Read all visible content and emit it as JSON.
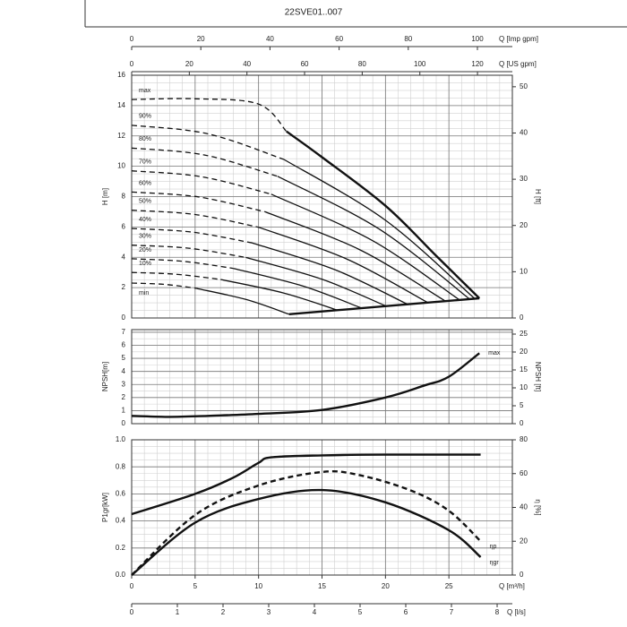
{
  "chart_data": [
    {
      "type": "line",
      "title": "22SVE01..007",
      "xlim": [
        0,
        30
      ],
      "xminor": 1,
      "yminor": 0.5,
      "ylabel": "H [m]",
      "ylim": [
        0,
        16
      ],
      "yticks": [
        0,
        2,
        4,
        6,
        8,
        10,
        12,
        14,
        16
      ],
      "y2label": "H [ft]",
      "y2lim": [
        0,
        52.49
      ],
      "y2ticks": [
        0,
        10,
        20,
        30,
        40,
        50
      ],
      "top_axes": [
        {
          "label": "Q [Imp gpm]",
          "lim": [
            0,
            110.1
          ],
          "ticks": [
            0,
            20,
            40,
            60,
            80,
            100
          ]
        },
        {
          "label": "Q [US gpm]",
          "lim": [
            0,
            132.1
          ],
          "ticks": [
            0,
            20,
            40,
            60,
            80,
            100,
            120
          ]
        }
      ],
      "series": [
        {
          "name": "max",
          "style": "dashed",
          "color": "#111",
          "x": [
            0,
            5,
            10,
            12.2
          ],
          "values": [
            14.4,
            14.45,
            14.1,
            12.3
          ]
        },
        {
          "style": "solid",
          "bold": true,
          "color": "#111",
          "x": [
            12.2,
            15,
            20,
            24,
            27.4
          ],
          "values": [
            12.3,
            10.6,
            7.4,
            4.1,
            1.3
          ]
        },
        {
          "name": "90%",
          "style": "dashed",
          "color": "#111",
          "x": [
            0,
            6,
            12
          ],
          "values": [
            12.7,
            12.14,
            10.45
          ]
        },
        {
          "style": "solid",
          "color": "#111",
          "x": [
            12,
            20,
            27
          ],
          "values": [
            10.45,
            6.44,
            1.3
          ]
        },
        {
          "name": "80%",
          "style": "dashed",
          "color": "#111",
          "x": [
            0,
            5.75,
            11.5
          ],
          "values": [
            11.2,
            10.74,
            9.34
          ]
        },
        {
          "style": "solid",
          "color": "#111",
          "x": [
            11.5,
            19.5,
            26.6
          ],
          "values": [
            9.34,
            5.86,
            1.27
          ]
        },
        {
          "name": "70%",
          "style": "dashed",
          "color": "#111",
          "x": [
            0,
            5.5,
            11
          ],
          "values": [
            9.7,
            9.31,
            8.16
          ]
        },
        {
          "style": "solid",
          "color": "#111",
          "x": [
            11,
            19,
            25.8
          ],
          "values": [
            8.16,
            5.09,
            1.21
          ]
        },
        {
          "name": "60%",
          "style": "dashed",
          "color": "#111",
          "x": [
            0,
            5.25,
            10.5
          ],
          "values": [
            8.3,
            7.98,
            7.0
          ]
        },
        {
          "style": "solid",
          "color": "#111",
          "x": [
            10.5,
            18,
            24.7
          ],
          "values": [
            7.0,
            4.49,
            1.13
          ]
        },
        {
          "name": "50%",
          "style": "dashed",
          "color": "#111",
          "x": [
            0,
            5,
            10
          ],
          "values": [
            7.1,
            6.82,
            5.98
          ]
        },
        {
          "style": "solid",
          "color": "#111",
          "x": [
            10,
            17,
            23.3
          ],
          "values": [
            5.98,
            3.87,
            1.03
          ]
        },
        {
          "name": "40%",
          "style": "dashed",
          "color": "#111",
          "x": [
            0,
            4.75,
            9.5
          ],
          "values": [
            5.9,
            5.66,
            4.95
          ]
        },
        {
          "style": "solid",
          "color": "#111",
          "x": [
            9.5,
            16,
            21.7
          ],
          "values": [
            4.95,
            3.19,
            0.92
          ]
        },
        {
          "name": "30%",
          "style": "dashed",
          "color": "#111",
          "x": [
            0,
            4.5,
            9
          ],
          "values": [
            4.8,
            4.6,
            3.99
          ]
        },
        {
          "style": "solid",
          "color": "#111",
          "x": [
            9,
            15,
            20
          ],
          "values": [
            3.99,
            2.55,
            0.8
          ]
        },
        {
          "name": "20%",
          "style": "dashed",
          "color": "#111",
          "x": [
            0,
            4,
            8
          ],
          "values": [
            3.9,
            3.74,
            3.27
          ]
        },
        {
          "style": "solid",
          "color": "#111",
          "x": [
            8,
            13.5,
            18.1
          ],
          "values": [
            3.27,
            2.1,
            0.66
          ]
        },
        {
          "name": "10%",
          "style": "dashed",
          "color": "#111",
          "x": [
            0,
            3.5,
            7
          ],
          "values": [
            3.0,
            2.88,
            2.54
          ]
        },
        {
          "style": "solid",
          "color": "#111",
          "x": [
            7,
            12,
            16.2
          ],
          "values": [
            2.54,
            1.64,
            0.52
          ]
        },
        {
          "name": "min",
          "style": "dashed",
          "color": "#111",
          "x": [
            0,
            2.5,
            5
          ],
          "values": [
            2.3,
            2.22,
            1.97
          ]
        },
        {
          "style": "solid",
          "color": "#111",
          "x": [
            5,
            9,
            12.4
          ],
          "values": [
            1.97,
            1.22,
            0.25
          ]
        },
        {
          "style": "solid",
          "bold": true,
          "color": "#111",
          "x": [
            12.4,
            27.4
          ],
          "values": [
            0.25,
            1.3
          ]
        }
      ]
    },
    {
      "type": "line",
      "xlim": [
        0,
        30
      ],
      "xminor": 1,
      "yminor": 0.5,
      "ylabel": "NPSH[m]",
      "ylim": [
        0,
        7.2
      ],
      "yticks": [
        0,
        1,
        2,
        3,
        4,
        5,
        6,
        7
      ],
      "y2label": "NPSH [ft]",
      "y2lim": [
        0,
        26.25
      ],
      "y2ticks": [
        0,
        5,
        10,
        15,
        20,
        25
      ],
      "series": [
        {
          "name": "max",
          "style": "solid",
          "bold": true,
          "color": "#111",
          "x": [
            0,
            3,
            6,
            10,
            15,
            20,
            23,
            25,
            27.4
          ],
          "values": [
            0.6,
            0.52,
            0.6,
            0.75,
            1.05,
            2.0,
            2.9,
            3.6,
            5.4
          ]
        }
      ]
    },
    {
      "type": "line",
      "xlim": [
        0,
        30
      ],
      "xminor": 1,
      "yminor": 0.05,
      "xlabel": "Q [m³/h]",
      "xticks": [
        0,
        5,
        10,
        15,
        20,
        25
      ],
      "ylabel": "P1gr[kW]",
      "ylim": [
        0,
        1
      ],
      "yticks": [
        {
          "value": 0,
          "label": "0.0"
        },
        0.2,
        0.4,
        0.6,
        0.8,
        {
          "value": 1,
          "label": "1.0"
        }
      ],
      "y2label": "η [%]",
      "y2lim": [
        0,
        80
      ],
      "y2ticks": [
        0,
        20,
        40,
        60,
        80
      ],
      "bottom_axes": [
        {
          "label": "Q [l/s]",
          "lim": [
            0,
            8.333
          ],
          "ticks": [
            0,
            1,
            2,
            3,
            4,
            5,
            6,
            7,
            8
          ]
        }
      ],
      "series": [
        {
          "style": "solid",
          "bold": true,
          "color": "#111",
          "x": [
            0,
            5,
            8,
            10,
            11,
            15,
            20,
            27.5
          ],
          "values": [
            0.45,
            0.6,
            0.72,
            0.83,
            0.87,
            0.885,
            0.89,
            0.89
          ]
        },
        {
          "name": "ηp",
          "axis": "y2",
          "style": "dashed",
          "bold": true,
          "color": "#111",
          "x": [
            0,
            5,
            10,
            15,
            18,
            22,
            25,
            27.5
          ],
          "values": [
            0,
            35.5,
            53,
            61,
            59,
            50,
            38,
            20
          ]
        },
        {
          "name": "ηgr",
          "axis": "y2",
          "style": "solid",
          "bold": true,
          "color": "#111",
          "x": [
            0,
            5,
            10,
            15,
            20,
            25,
            27.5
          ],
          "values": [
            0,
            31,
            45,
            50.3,
            43,
            26.5,
            10.6
          ]
        }
      ]
    }
  ]
}
